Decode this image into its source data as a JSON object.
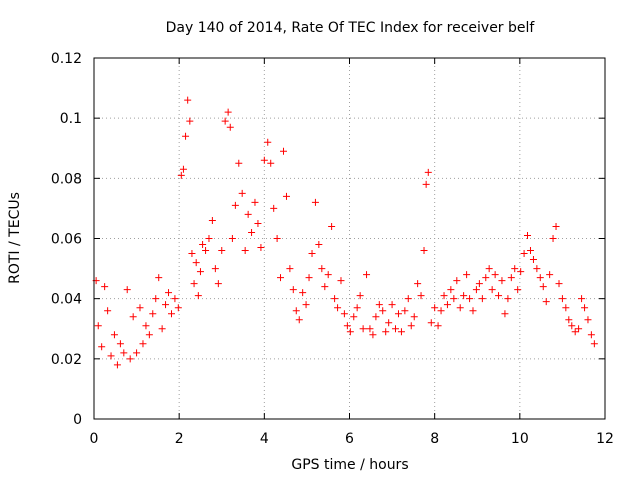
{
  "chart_data": {
    "type": "scatter",
    "title": "Day 140 of 2014, Rate Of TEC Index for receiver belf",
    "xlabel": "GPS time / hours",
    "ylabel": "ROTI / TECUs",
    "xlim": [
      0,
      12
    ],
    "ylim": [
      0,
      0.12
    ],
    "xticks": [
      0,
      2,
      4,
      6,
      8,
      10,
      12
    ],
    "xtick_labels": [
      "0",
      "2",
      "4",
      "6",
      "8",
      "10",
      "12"
    ],
    "yticks": [
      0,
      0.02,
      0.04,
      0.06,
      0.08,
      0.1,
      0.12
    ],
    "ytick_labels": [
      "0",
      "0.02",
      "0.04",
      "0.06",
      "0.08",
      "0.1",
      "0.12"
    ],
    "grid": true,
    "marker": "+",
    "color": "#ff0000",
    "series": [
      {
        "name": "ROTI",
        "x": [
          0.05,
          0.1,
          0.18,
          0.25,
          0.32,
          0.4,
          0.48,
          0.55,
          0.62,
          0.7,
          0.78,
          0.85,
          0.92,
          1.0,
          1.08,
          1.15,
          1.22,
          1.3,
          1.38,
          1.45,
          1.52,
          1.6,
          1.68,
          1.75,
          1.82,
          1.9,
          1.98,
          2.05,
          2.1,
          2.15,
          2.2,
          2.25,
          2.3,
          2.35,
          2.4,
          2.45,
          2.5,
          2.55,
          2.62,
          2.7,
          2.78,
          2.85,
          2.92,
          3.0,
          3.08,
          3.15,
          3.2,
          3.25,
          3.32,
          3.4,
          3.48,
          3.55,
          3.62,
          3.7,
          3.78,
          3.85,
          3.92,
          4.0,
          4.08,
          4.15,
          4.22,
          4.3,
          4.38,
          4.45,
          4.52,
          4.6,
          4.68,
          4.75,
          4.82,
          4.9,
          4.98,
          5.05,
          5.12,
          5.2,
          5.28,
          5.35,
          5.42,
          5.5,
          5.58,
          5.65,
          5.72,
          5.8,
          5.88,
          5.95,
          6.02,
          6.1,
          6.18,
          6.25,
          6.32,
          6.4,
          6.48,
          6.55,
          6.62,
          6.7,
          6.78,
          6.85,
          6.92,
          7.0,
          7.08,
          7.15,
          7.22,
          7.3,
          7.38,
          7.45,
          7.52,
          7.6,
          7.68,
          7.75,
          7.8,
          7.85,
          7.92,
          8.0,
          8.08,
          8.15,
          8.22,
          8.3,
          8.38,
          8.45,
          8.52,
          8.6,
          8.68,
          8.75,
          8.82,
          8.9,
          8.98,
          9.05,
          9.12,
          9.2,
          9.28,
          9.35,
          9.42,
          9.5,
          9.58,
          9.65,
          9.72,
          9.8,
          9.88,
          9.95,
          10.02,
          10.1,
          10.18,
          10.25,
          10.32,
          10.4,
          10.48,
          10.55,
          10.62,
          10.7,
          10.78,
          10.85,
          10.92,
          11.0,
          11.08,
          11.15,
          11.22,
          11.3,
          11.38,
          11.45,
          11.52,
          11.6,
          11.68,
          11.75
        ],
        "y": [
          0.046,
          0.031,
          0.024,
          0.044,
          0.036,
          0.021,
          0.028,
          0.018,
          0.025,
          0.022,
          0.043,
          0.02,
          0.034,
          0.022,
          0.037,
          0.025,
          0.031,
          0.028,
          0.035,
          0.04,
          0.047,
          0.03,
          0.038,
          0.042,
          0.035,
          0.04,
          0.037,
          0.081,
          0.083,
          0.094,
          0.106,
          0.099,
          0.055,
          0.045,
          0.052,
          0.041,
          0.049,
          0.058,
          0.056,
          0.06,
          0.066,
          0.05,
          0.045,
          0.056,
          0.099,
          0.102,
          0.097,
          0.06,
          0.071,
          0.085,
          0.075,
          0.056,
          0.068,
          0.062,
          0.072,
          0.065,
          0.057,
          0.086,
          0.092,
          0.085,
          0.07,
          0.06,
          0.047,
          0.089,
          0.074,
          0.05,
          0.043,
          0.036,
          0.033,
          0.042,
          0.038,
          0.047,
          0.055,
          0.072,
          0.058,
          0.05,
          0.044,
          0.048,
          0.064,
          0.04,
          0.037,
          0.046,
          0.035,
          0.031,
          0.029,
          0.034,
          0.037,
          0.041,
          0.03,
          0.048,
          0.03,
          0.028,
          0.034,
          0.038,
          0.036,
          0.029,
          0.032,
          0.038,
          0.03,
          0.035,
          0.029,
          0.036,
          0.04,
          0.031,
          0.034,
          0.045,
          0.041,
          0.056,
          0.078,
          0.082,
          0.032,
          0.037,
          0.031,
          0.036,
          0.041,
          0.038,
          0.043,
          0.04,
          0.046,
          0.037,
          0.041,
          0.048,
          0.04,
          0.036,
          0.043,
          0.045,
          0.04,
          0.047,
          0.05,
          0.043,
          0.048,
          0.041,
          0.046,
          0.035,
          0.04,
          0.047,
          0.05,
          0.043,
          0.049,
          0.055,
          0.061,
          0.056,
          0.053,
          0.05,
          0.047,
          0.044,
          0.039,
          0.048,
          0.06,
          0.064,
          0.045,
          0.04,
          0.037,
          0.033,
          0.031,
          0.029,
          0.03,
          0.04,
          0.037,
          0.033,
          0.028,
          0.025
        ]
      }
    ]
  }
}
